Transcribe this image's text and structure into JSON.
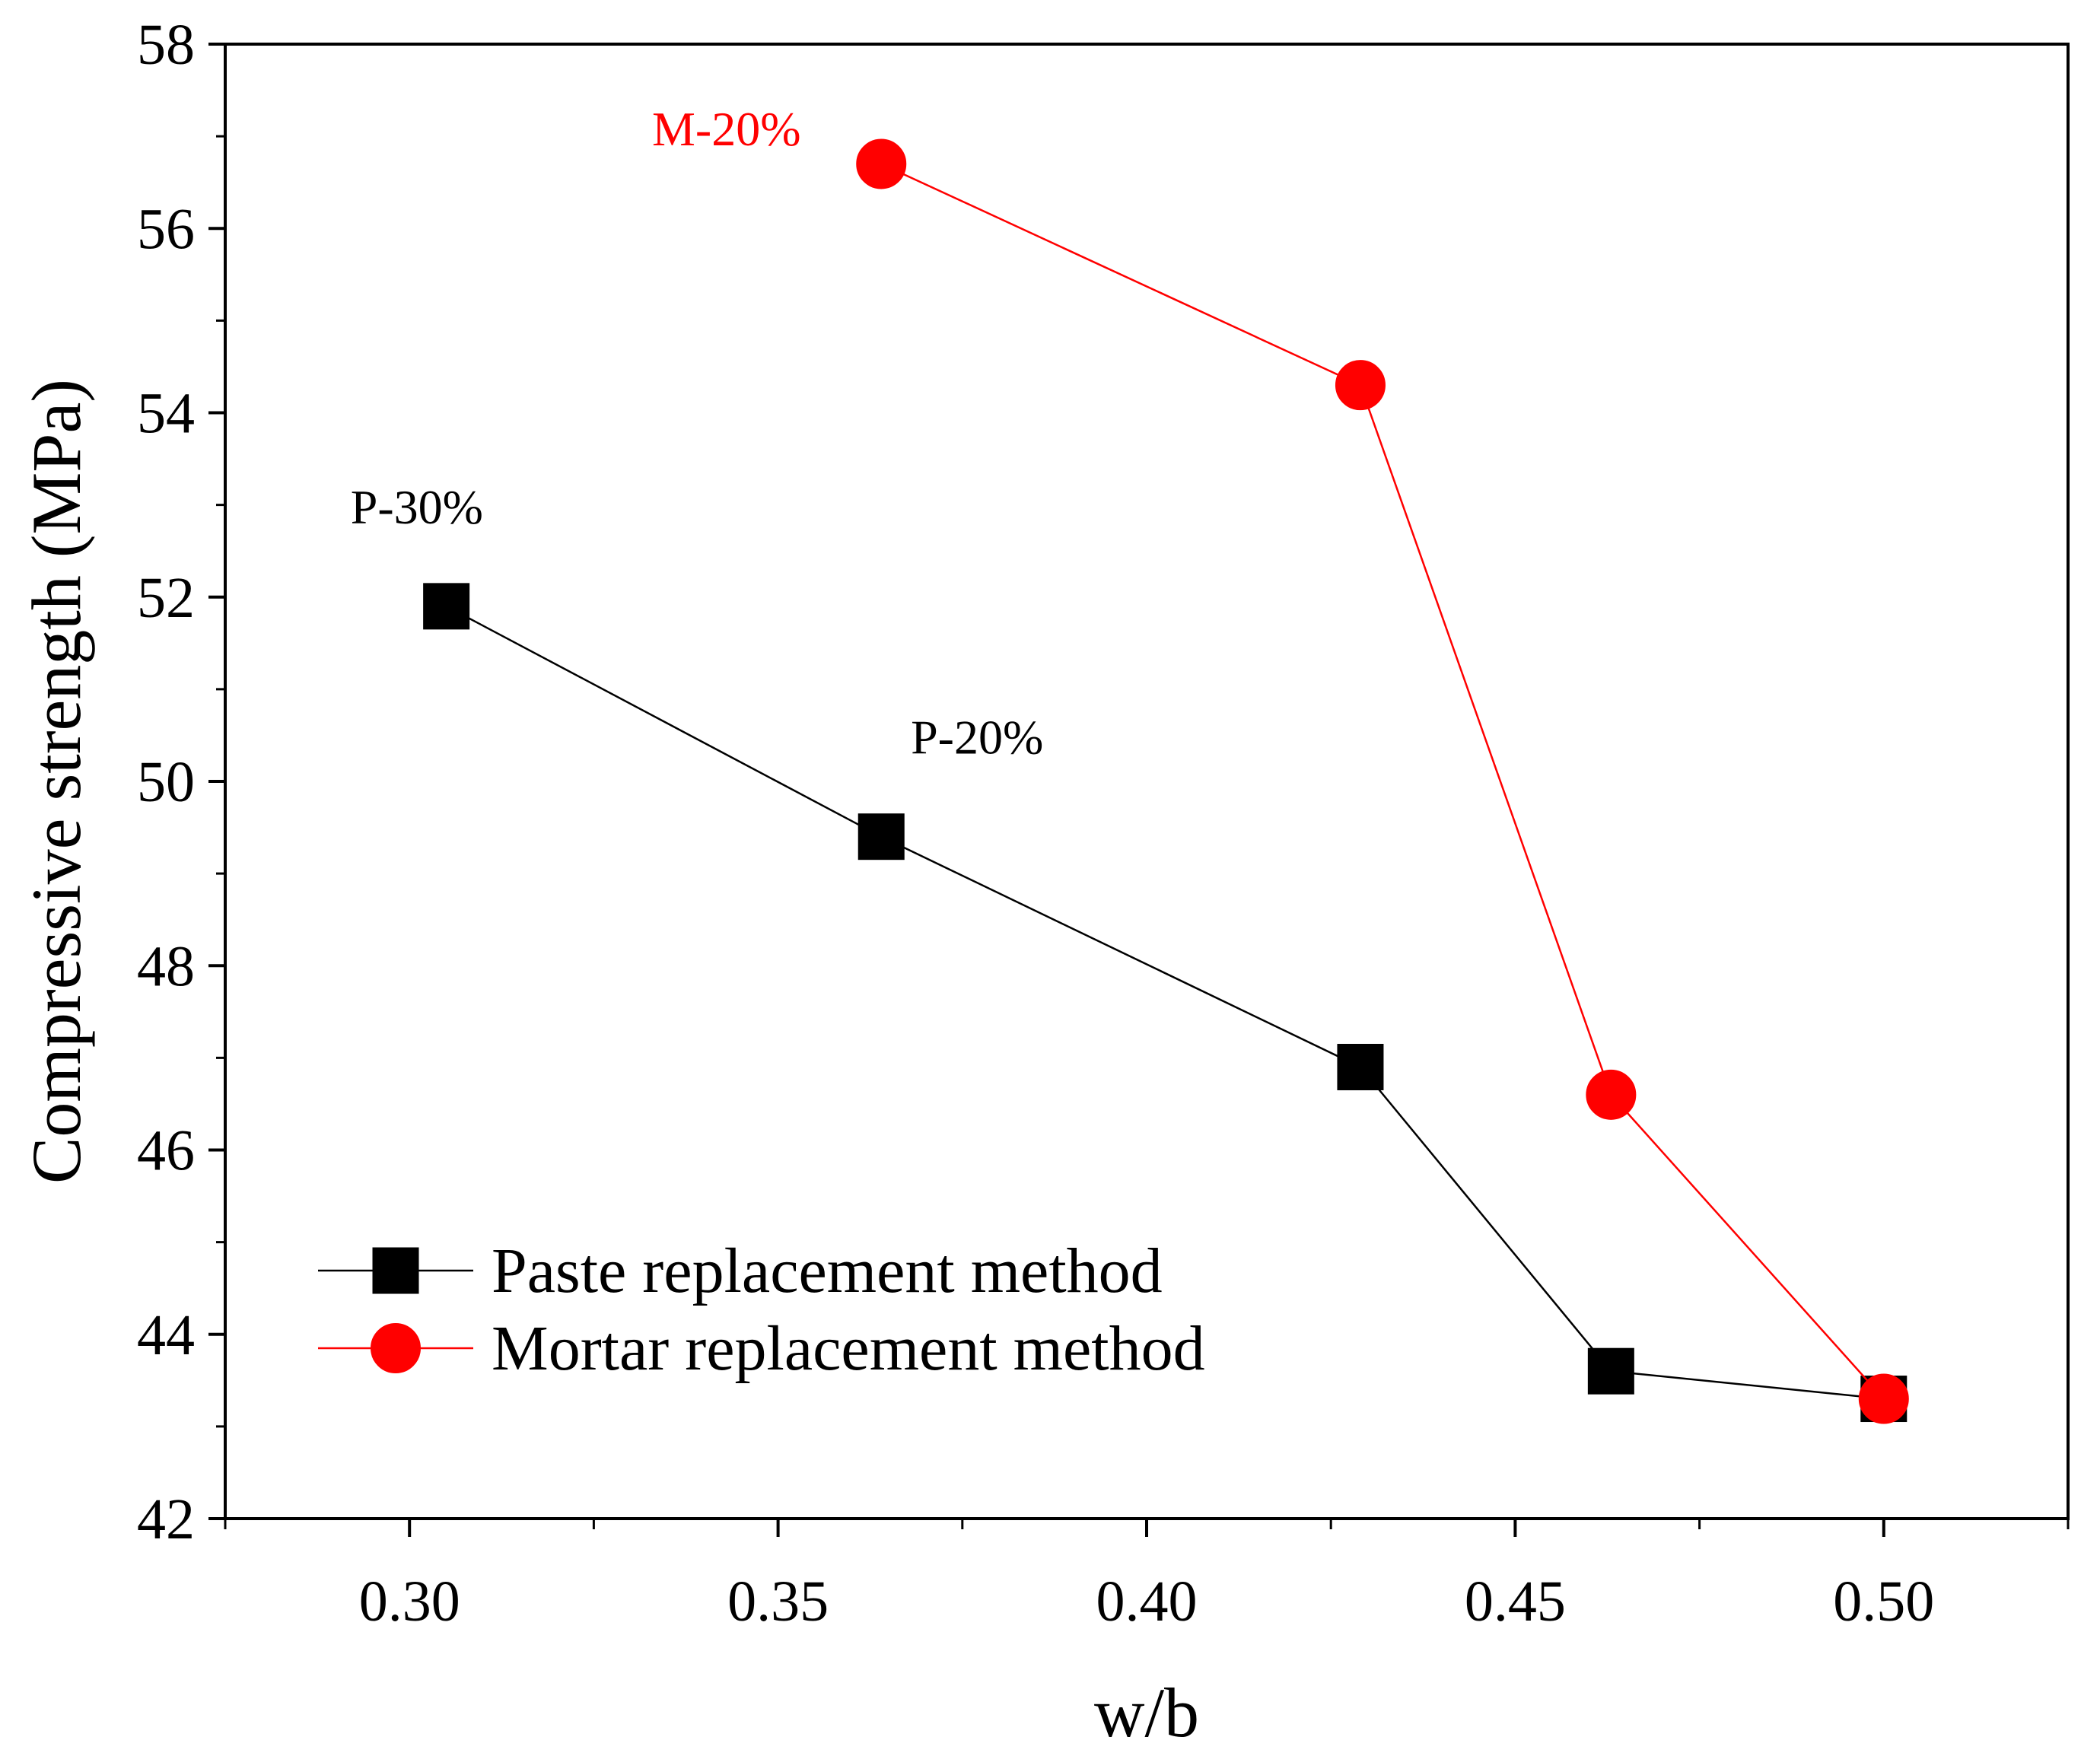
{
  "chart_data": {
    "type": "line",
    "title": "",
    "xlabel": "w/b",
    "ylabel": "Compressive strength (MPa)",
    "xlim": [
      0.275,
      0.525
    ],
    "ylim": [
      42,
      58
    ],
    "x_ticks": [
      0.3,
      0.35,
      0.4,
      0.45,
      0.5
    ],
    "x_tick_labels": [
      "0.30",
      "0.35",
      "0.40",
      "0.45",
      "0.50"
    ],
    "y_ticks": [
      42,
      44,
      46,
      48,
      50,
      52,
      54,
      56,
      58
    ],
    "y_tick_labels": [
      "42",
      "44",
      "46",
      "48",
      "50",
      "52",
      "54",
      "56",
      "58"
    ],
    "grid": false,
    "legend_position": "bottom-left",
    "series": [
      {
        "name": "Paste replacement method",
        "color": "#000000",
        "marker": "square",
        "x": [
          0.305,
          0.364,
          0.429,
          0.463,
          0.5
        ],
        "y": [
          51.9,
          49.4,
          46.9,
          43.6,
          43.3
        ]
      },
      {
        "name": "Mortar replacement method",
        "color": "#ff0000",
        "marker": "circle",
        "x": [
          0.364,
          0.429,
          0.463,
          0.5
        ],
        "y": [
          56.7,
          54.3,
          46.6,
          43.3
        ]
      }
    ],
    "annotations": [
      {
        "text": "M-20%",
        "x": 0.343,
        "y": 56.9,
        "color": "#ff0000"
      },
      {
        "text": "P-30%",
        "x": 0.301,
        "y": 52.8,
        "color": "#000000"
      },
      {
        "text": "P-20%",
        "x": 0.377,
        "y": 50.3,
        "color": "#000000"
      }
    ]
  }
}
